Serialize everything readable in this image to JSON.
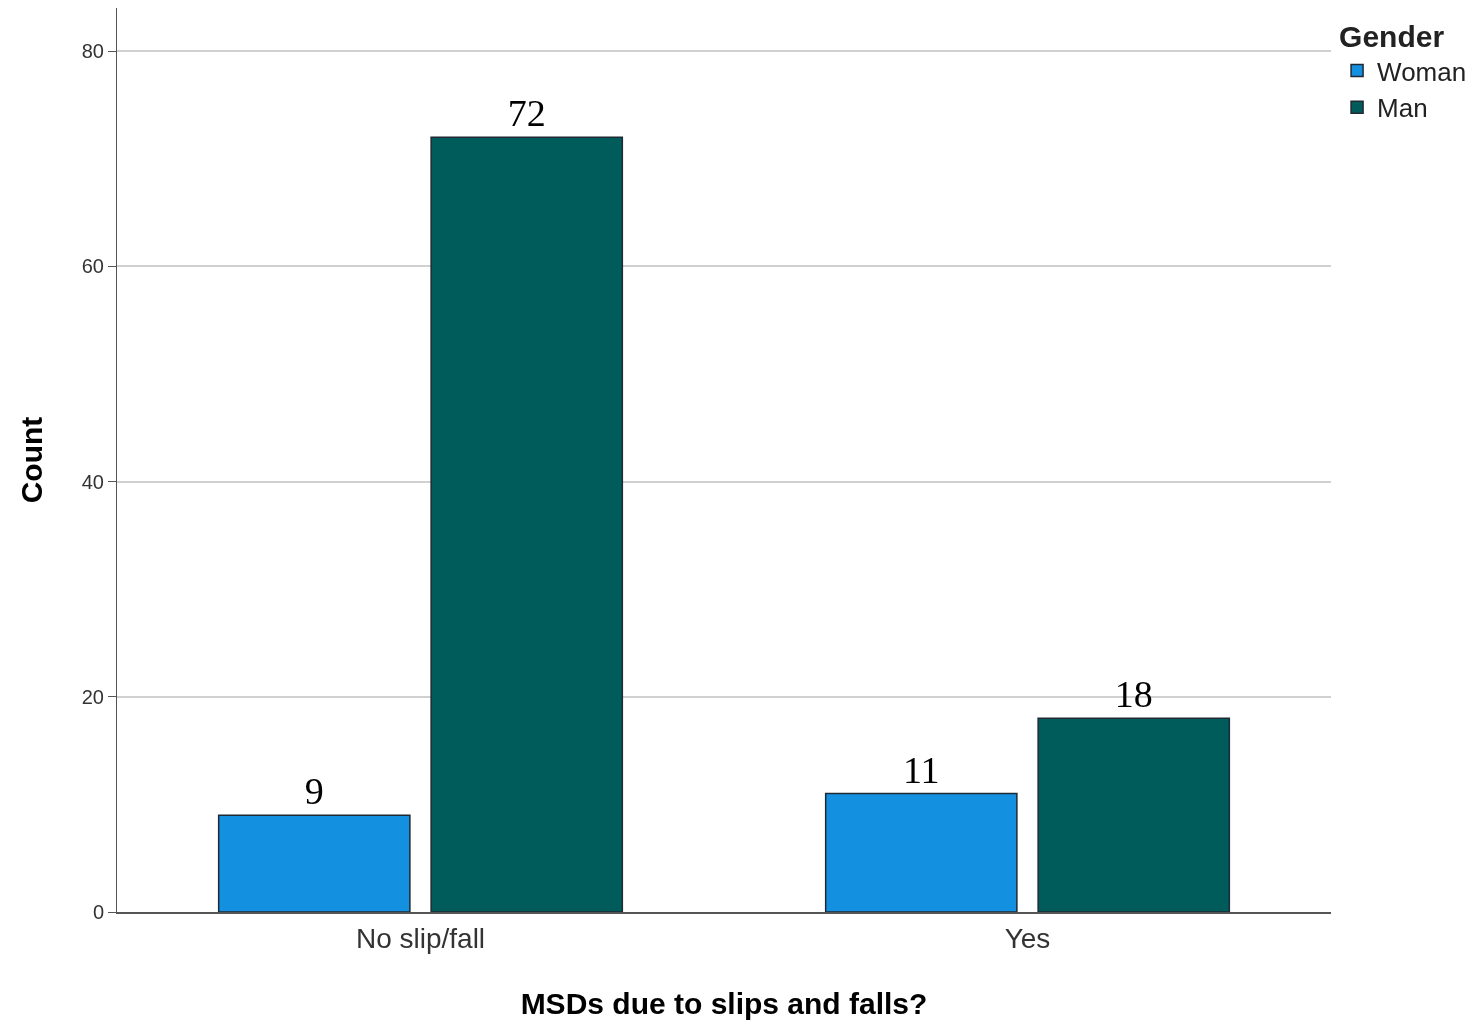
{
  "chart_data": {
    "type": "bar",
    "xlabel": "MSDs due to slips and falls?",
    "ylabel": "Count",
    "legend_title": "Gender",
    "categories": [
      "No slip/fall",
      "Yes"
    ],
    "series": [
      {
        "name": "Woman",
        "color": "#1490e0",
        "values": [
          9,
          11
        ]
      },
      {
        "name": "Man",
        "color": "#005c5a",
        "values": [
          72,
          18
        ]
      }
    ],
    "ylim": [
      0,
      84
    ],
    "yticks": [
      0,
      20,
      40,
      60,
      80
    ],
    "grid": "y",
    "legend": "top right",
    "data_labels": true
  }
}
